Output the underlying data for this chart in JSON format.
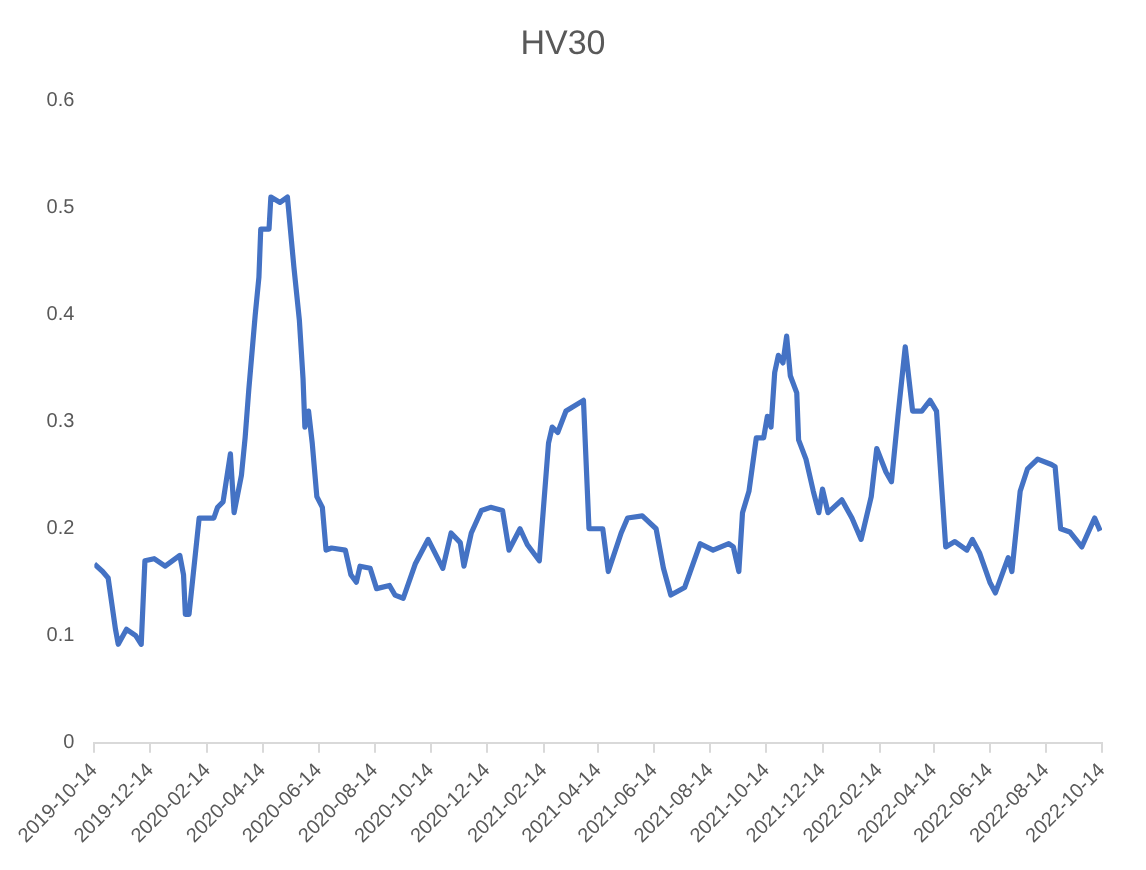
{
  "chart_data": {
    "type": "line",
    "title": "HV30",
    "grid": false,
    "legend": false,
    "marker": "none",
    "line_style": "solid",
    "xlim": [
      "2019-10-14",
      "2022-10-14"
    ],
    "xticks": [
      "2019-10-14",
      "2019-12-14",
      "2020-02-14",
      "2020-04-14",
      "2020-06-14",
      "2020-08-14",
      "2020-10-14",
      "2020-12-14",
      "2021-02-14",
      "2021-04-14",
      "2021-06-14",
      "2021-08-14",
      "2021-10-14",
      "2021-12-14",
      "2022-02-14",
      "2022-04-14",
      "2022-06-14",
      "2022-08-14",
      "2022-10-14"
    ],
    "ylim": [
      0,
      0.6
    ],
    "yticks": [
      0,
      0.1,
      0.2,
      0.3,
      0.4,
      0.5,
      0.6
    ],
    "series": [
      {
        "color": "#4472c4",
        "x": [
          "2019-10-14",
          "2019-10-23",
          "2019-10-29",
          "2019-11-02",
          "2019-11-06",
          "2019-11-09",
          "2019-11-18",
          "2019-11-28",
          "2019-12-04",
          "2019-12-08",
          "2019-12-18",
          "2019-12-30",
          "2020-01-15",
          "2020-01-19",
          "2020-01-21",
          "2020-01-25",
          "2020-02-05",
          "2020-02-21",
          "2020-02-25",
          "2020-03-02",
          "2020-03-10",
          "2020-03-14",
          "2020-03-22",
          "2020-03-26",
          "2020-03-30",
          "2020-04-06",
          "2020-04-10",
          "2020-04-12",
          "2020-04-21",
          "2020-04-23",
          "2020-05-03",
          "2020-05-11",
          "2020-05-18",
          "2020-05-24",
          "2020-05-28",
          "2020-05-30",
          "2020-06-03",
          "2020-06-07",
          "2020-06-12",
          "2020-06-18",
          "2020-06-22",
          "2020-06-28",
          "2020-07-13",
          "2020-07-19",
          "2020-07-25",
          "2020-07-29",
          "2020-08-09",
          "2020-08-16",
          "2020-08-30",
          "2020-09-05",
          "2020-09-14",
          "2020-09-27",
          "2020-10-11",
          "2020-10-27",
          "2020-11-05",
          "2020-11-15",
          "2020-11-19",
          "2020-11-27",
          "2020-12-08",
          "2020-12-18",
          "2020-12-31",
          "2021-01-07",
          "2021-01-19",
          "2021-01-27",
          "2021-02-09",
          "2021-02-19",
          "2021-02-23",
          "2021-03-01",
          "2021-03-10",
          "2021-03-29",
          "2021-04-04",
          "2021-04-19",
          "2021-04-25",
          "2021-05-09",
          "2021-05-16",
          "2021-06-01",
          "2021-06-16",
          "2021-06-24",
          "2021-07-02",
          "2021-07-17",
          "2021-08-03",
          "2021-08-17",
          "2021-09-03",
          "2021-09-08",
          "2021-09-14",
          "2021-09-18",
          "2021-09-25",
          "2021-10-03",
          "2021-10-11",
          "2021-10-15",
          "2021-10-19",
          "2021-10-23",
          "2021-10-27",
          "2021-11-01",
          "2021-11-05",
          "2021-11-09",
          "2021-11-16",
          "2021-11-18",
          "2021-11-26",
          "2021-12-04",
          "2021-12-10",
          "2021-12-14",
          "2021-12-20",
          "2022-01-04",
          "2022-01-15",
          "2022-01-25",
          "2022-02-05",
          "2022-02-11",
          "2022-02-21",
          "2022-02-27",
          "2022-03-06",
          "2022-03-14",
          "2022-03-22",
          "2022-04-01",
          "2022-04-10",
          "2022-04-17",
          "2022-04-27",
          "2022-05-07",
          "2022-05-20",
          "2022-05-26",
          "2022-06-03",
          "2022-06-14",
          "2022-06-20",
          "2022-07-04",
          "2022-07-08",
          "2022-07-17",
          "2022-07-25",
          "2022-08-05",
          "2022-08-20",
          "2022-08-24",
          "2022-08-30",
          "2022-09-09",
          "2022-09-22",
          "2022-10-06",
          "2022-10-12"
        ],
        "values": [
          0.167,
          0.16,
          0.154,
          0.13,
          0.106,
          0.092,
          0.106,
          0.1,
          0.092,
          0.17,
          0.172,
          0.165,
          0.175,
          0.157,
          0.12,
          0.12,
          0.21,
          0.21,
          0.22,
          0.225,
          0.27,
          0.215,
          0.25,
          0.285,
          0.33,
          0.4,
          0.435,
          0.48,
          0.48,
          0.51,
          0.505,
          0.51,
          0.445,
          0.395,
          0.34,
          0.295,
          0.31,
          0.28,
          0.23,
          0.22,
          0.18,
          0.182,
          0.18,
          0.157,
          0.15,
          0.165,
          0.163,
          0.144,
          0.147,
          0.138,
          0.135,
          0.167,
          0.19,
          0.163,
          0.196,
          0.187,
          0.165,
          0.196,
          0.217,
          0.22,
          0.217,
          0.18,
          0.2,
          0.185,
          0.17,
          0.28,
          0.295,
          0.29,
          0.31,
          0.32,
          0.2,
          0.2,
          0.16,
          0.196,
          0.21,
          0.212,
          0.2,
          0.163,
          0.138,
          0.145,
          0.186,
          0.18,
          0.186,
          0.183,
          0.16,
          0.215,
          0.235,
          0.285,
          0.285,
          0.305,
          0.295,
          0.346,
          0.362,
          0.355,
          0.38,
          0.343,
          0.327,
          0.283,
          0.265,
          0.235,
          0.215,
          0.237,
          0.215,
          0.227,
          0.21,
          0.19,
          0.23,
          0.275,
          0.253,
          0.244,
          0.305,
          0.37,
          0.31,
          0.31,
          0.32,
          0.31,
          0.183,
          0.188,
          0.18,
          0.19,
          0.177,
          0.15,
          0.14,
          0.173,
          0.16,
          0.235,
          0.256,
          0.265,
          0.26,
          0.258,
          0.2,
          0.197,
          0.183,
          0.21,
          0.198
        ]
      }
    ]
  }
}
